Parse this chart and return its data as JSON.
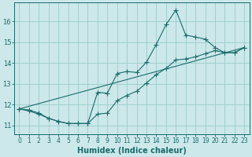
{
  "xlabel": "Humidex (Indice chaleur)",
  "background_color": "#cce8ea",
  "grid_color": "#99cccc",
  "line_color": "#1a6b6b",
  "xlim": [
    -0.5,
    23.5
  ],
  "ylim": [
    10.6,
    16.9
  ],
  "yticks": [
    11,
    12,
    13,
    14,
    15,
    16
  ],
  "xticks": [
    0,
    1,
    2,
    3,
    4,
    5,
    6,
    7,
    8,
    9,
    10,
    11,
    12,
    13,
    14,
    15,
    16,
    17,
    18,
    19,
    20,
    21,
    22,
    23
  ],
  "line1_x": [
    0,
    1,
    2,
    3,
    4,
    5,
    6,
    7,
    8,
    9,
    10,
    11,
    12,
    13,
    14,
    15,
    16,
    17,
    18,
    19,
    20,
    21,
    22,
    23
  ],
  "line1_y": [
    11.8,
    11.75,
    11.6,
    11.35,
    11.2,
    11.1,
    11.1,
    11.1,
    12.6,
    12.55,
    13.5,
    13.6,
    13.55,
    14.05,
    14.9,
    15.85,
    16.55,
    15.35,
    15.25,
    15.15,
    14.75,
    14.5,
    14.5,
    14.75
  ],
  "line2_x": [
    0,
    1,
    2,
    3,
    4,
    5,
    6,
    7,
    8,
    9,
    10,
    11,
    12,
    13,
    14,
    15,
    16,
    17,
    18,
    19,
    20,
    21,
    22,
    23
  ],
  "line2_y": [
    11.8,
    11.7,
    11.55,
    11.35,
    11.2,
    11.1,
    11.1,
    11.1,
    11.55,
    11.6,
    12.2,
    12.45,
    12.65,
    13.05,
    13.45,
    13.75,
    14.15,
    14.2,
    14.3,
    14.45,
    14.6,
    14.5,
    14.5,
    14.75
  ],
  "line3_x": [
    0,
    23
  ],
  "line3_y": [
    11.8,
    14.75
  ]
}
